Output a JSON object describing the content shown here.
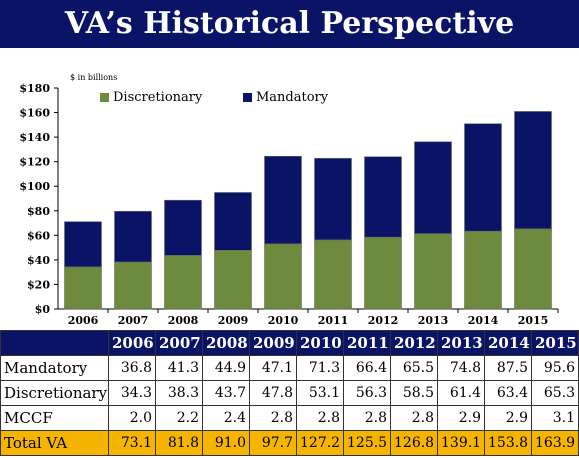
{
  "title": "VA’s Historical Perspective",
  "chart_data": {
    "type": "bar",
    "stacked": true,
    "units_note": "$ in billions",
    "categories": [
      "2006",
      "2007",
      "2008",
      "2009",
      "2010",
      "2011",
      "2012",
      "2013",
      "2014",
      "2015"
    ],
    "series": [
      {
        "name": "Discretionary",
        "color": "#6e8b3d",
        "values": [
          34.3,
          38.3,
          43.7,
          47.8,
          53.1,
          56.3,
          58.5,
          61.4,
          63.4,
          65.3
        ]
      },
      {
        "name": "Mandatory",
        "color": "#0a1466",
        "values": [
          36.8,
          41.3,
          44.9,
          47.1,
          71.3,
          66.4,
          65.5,
          74.8,
          87.5,
          95.6
        ]
      }
    ],
    "y_ticks": [
      "$0",
      "$20",
      "$40",
      "$60",
      "$80",
      "$100",
      "$120",
      "$140",
      "$160",
      "$180"
    ],
    "ylim": [
      0,
      180
    ],
    "grid": false,
    "legend_position": "top-left"
  },
  "table": {
    "header": [
      "",
      "2006",
      "2007",
      "2008",
      "2009",
      "2010",
      "2011",
      "2012",
      "2013",
      "2014",
      "2015"
    ],
    "rows": [
      {
        "label": "Mandatory",
        "values": [
          "36.8",
          "41.3",
          "44.9",
          "47.1",
          "71.3",
          "66.4",
          "65.5",
          "74.8",
          "87.5",
          "95.6"
        ]
      },
      {
        "label": "Discretionary",
        "values": [
          "34.3",
          "38.3",
          "43.7",
          "47.8",
          "53.1",
          "56.3",
          "58.5",
          "61.4",
          "63.4",
          "65.3"
        ]
      },
      {
        "label": "MCCF",
        "values": [
          "2.0",
          "2.2",
          "2.4",
          "2.8",
          "2.8",
          "2.8",
          "2.8",
          "2.9",
          "2.9",
          "3.1"
        ]
      }
    ],
    "total": {
      "label": "Total VA",
      "values": [
        "73.1",
        "81.8",
        "91.0",
        "97.7",
        "127.2",
        "125.5",
        "126.8",
        "139.1",
        "153.8",
        "163.9"
      ]
    }
  }
}
